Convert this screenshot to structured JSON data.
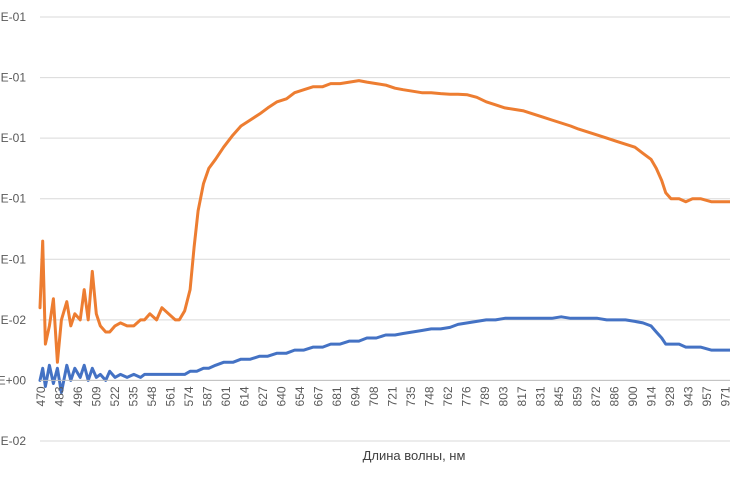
{
  "chart_data": {
    "type": "line",
    "title": "",
    "xlabel": "Длина волны, нм",
    "ylabel": "",
    "x_tick_labels": [
      "470",
      "483",
      "496",
      "509",
      "522",
      "535",
      "548",
      "561",
      "574",
      "587",
      "601",
      "614",
      "627",
      "640",
      "654",
      "667",
      "681",
      "694",
      "708",
      "721",
      "735",
      "748",
      "762",
      "776",
      "789",
      "803",
      "817",
      "831",
      "845",
      "859",
      "872",
      "886",
      "900",
      "914",
      "928",
      "943",
      "957",
      "971"
    ],
    "y_tick_labels": [
      "E-01",
      "E-01",
      "E-01",
      "E-01",
      "E-01",
      "E-02",
      "E+00",
      "E-02"
    ],
    "xlim": [
      470,
      985
    ],
    "ylim": [
      -0.2,
      1.2
    ],
    "grid": "horizontal",
    "legend": "none",
    "series": [
      {
        "color": "#ed7d31",
        "points": [
          [
            470,
            0.24
          ],
          [
            472,
            0.46
          ],
          [
            474,
            0.12
          ],
          [
            477,
            0.18
          ],
          [
            480,
            0.27
          ],
          [
            483,
            0.06
          ],
          [
            486,
            0.2
          ],
          [
            490,
            0.26
          ],
          [
            493,
            0.18
          ],
          [
            496,
            0.22
          ],
          [
            500,
            0.2
          ],
          [
            503,
            0.3
          ],
          [
            506,
            0.2
          ],
          [
            509,
            0.36
          ],
          [
            512,
            0.22
          ],
          [
            515,
            0.18
          ],
          [
            519,
            0.16
          ],
          [
            522,
            0.16
          ],
          [
            526,
            0.18
          ],
          [
            530,
            0.19
          ],
          [
            535,
            0.18
          ],
          [
            540,
            0.18
          ],
          [
            545,
            0.2
          ],
          [
            548,
            0.2
          ],
          [
            552,
            0.22
          ],
          [
            557,
            0.2
          ],
          [
            561,
            0.24
          ],
          [
            566,
            0.22
          ],
          [
            571,
            0.2
          ],
          [
            574,
            0.2
          ],
          [
            578,
            0.23
          ],
          [
            582,
            0.3
          ],
          [
            585,
            0.44
          ],
          [
            588,
            0.56
          ],
          [
            592,
            0.65
          ],
          [
            596,
            0.7
          ],
          [
            601,
            0.73
          ],
          [
            607,
            0.77
          ],
          [
            614,
            0.81
          ],
          [
            620,
            0.84
          ],
          [
            627,
            0.86
          ],
          [
            634,
            0.88
          ],
          [
            640,
            0.9
          ],
          [
            647,
            0.92
          ],
          [
            654,
            0.93
          ],
          [
            660,
            0.95
          ],
          [
            667,
            0.96
          ],
          [
            674,
            0.97
          ],
          [
            681,
            0.97
          ],
          [
            687,
            0.98
          ],
          [
            694,
            0.98
          ],
          [
            701,
            0.985
          ],
          [
            708,
            0.99
          ],
          [
            714,
            0.985
          ],
          [
            721,
            0.98
          ],
          [
            728,
            0.975
          ],
          [
            735,
            0.965
          ],
          [
            741,
            0.96
          ],
          [
            748,
            0.955
          ],
          [
            755,
            0.95
          ],
          [
            762,
            0.95
          ],
          [
            769,
            0.947
          ],
          [
            776,
            0.945
          ],
          [
            782,
            0.945
          ],
          [
            789,
            0.943
          ],
          [
            796,
            0.935
          ],
          [
            803,
            0.92
          ],
          [
            810,
            0.91
          ],
          [
            817,
            0.9
          ],
          [
            824,
            0.895
          ],
          [
            831,
            0.89
          ],
          [
            838,
            0.88
          ],
          [
            845,
            0.87
          ],
          [
            852,
            0.86
          ],
          [
            859,
            0.85
          ],
          [
            866,
            0.84
          ],
          [
            872,
            0.83
          ],
          [
            879,
            0.82
          ],
          [
            886,
            0.81
          ],
          [
            893,
            0.8
          ],
          [
            900,
            0.79
          ],
          [
            907,
            0.78
          ],
          [
            914,
            0.77
          ],
          [
            920,
            0.75
          ],
          [
            926,
            0.73
          ],
          [
            930,
            0.7
          ],
          [
            934,
            0.66
          ],
          [
            937,
            0.62
          ],
          [
            941,
            0.6
          ],
          [
            947,
            0.6
          ],
          [
            952,
            0.59
          ],
          [
            957,
            0.6
          ],
          [
            963,
            0.6
          ],
          [
            971,
            0.59
          ],
          [
            978,
            0.59
          ],
          [
            985,
            0.59
          ]
        ]
      },
      {
        "color": "#4472c4",
        "points": [
          [
            470,
            0.0
          ],
          [
            472,
            0.04
          ],
          [
            474,
            -0.02
          ],
          [
            477,
            0.05
          ],
          [
            480,
            -0.01
          ],
          [
            483,
            0.04
          ],
          [
            486,
            -0.04
          ],
          [
            490,
            0.05
          ],
          [
            493,
            0.0
          ],
          [
            496,
            0.04
          ],
          [
            500,
            0.01
          ],
          [
            503,
            0.05
          ],
          [
            506,
            0.0
          ],
          [
            509,
            0.04
          ],
          [
            512,
            0.01
          ],
          [
            515,
            0.02
          ],
          [
            519,
            0.0
          ],
          [
            522,
            0.03
          ],
          [
            526,
            0.01
          ],
          [
            530,
            0.02
          ],
          [
            535,
            0.01
          ],
          [
            540,
            0.02
          ],
          [
            545,
            0.01
          ],
          [
            548,
            0.02
          ],
          [
            552,
            0.02
          ],
          [
            557,
            0.02
          ],
          [
            561,
            0.02
          ],
          [
            566,
            0.02
          ],
          [
            571,
            0.02
          ],
          [
            574,
            0.02
          ],
          [
            578,
            0.02
          ],
          [
            582,
            0.03
          ],
          [
            587,
            0.03
          ],
          [
            592,
            0.04
          ],
          [
            596,
            0.04
          ],
          [
            601,
            0.05
          ],
          [
            607,
            0.06
          ],
          [
            614,
            0.06
          ],
          [
            620,
            0.07
          ],
          [
            627,
            0.07
          ],
          [
            634,
            0.08
          ],
          [
            640,
            0.08
          ],
          [
            647,
            0.09
          ],
          [
            654,
            0.09
          ],
          [
            660,
            0.1
          ],
          [
            667,
            0.1
          ],
          [
            674,
            0.11
          ],
          [
            681,
            0.11
          ],
          [
            687,
            0.12
          ],
          [
            694,
            0.12
          ],
          [
            701,
            0.13
          ],
          [
            708,
            0.13
          ],
          [
            714,
            0.14
          ],
          [
            721,
            0.14
          ],
          [
            728,
            0.15
          ],
          [
            735,
            0.15
          ],
          [
            741,
            0.155
          ],
          [
            748,
            0.16
          ],
          [
            755,
            0.165
          ],
          [
            762,
            0.17
          ],
          [
            769,
            0.17
          ],
          [
            776,
            0.175
          ],
          [
            782,
            0.185
          ],
          [
            789,
            0.19
          ],
          [
            796,
            0.195
          ],
          [
            803,
            0.2
          ],
          [
            810,
            0.2
          ],
          [
            817,
            0.205
          ],
          [
            824,
            0.205
          ],
          [
            831,
            0.205
          ],
          [
            838,
            0.205
          ],
          [
            845,
            0.205
          ],
          [
            852,
            0.205
          ],
          [
            859,
            0.21
          ],
          [
            866,
            0.205
          ],
          [
            872,
            0.205
          ],
          [
            879,
            0.205
          ],
          [
            886,
            0.205
          ],
          [
            893,
            0.2
          ],
          [
            900,
            0.2
          ],
          [
            907,
            0.2
          ],
          [
            914,
            0.195
          ],
          [
            920,
            0.19
          ],
          [
            926,
            0.18
          ],
          [
            930,
            0.16
          ],
          [
            934,
            0.14
          ],
          [
            937,
            0.12
          ],
          [
            941,
            0.12
          ],
          [
            947,
            0.12
          ],
          [
            952,
            0.11
          ],
          [
            957,
            0.11
          ],
          [
            963,
            0.11
          ],
          [
            971,
            0.1
          ],
          [
            978,
            0.1
          ],
          [
            985,
            0.1
          ]
        ]
      }
    ]
  }
}
